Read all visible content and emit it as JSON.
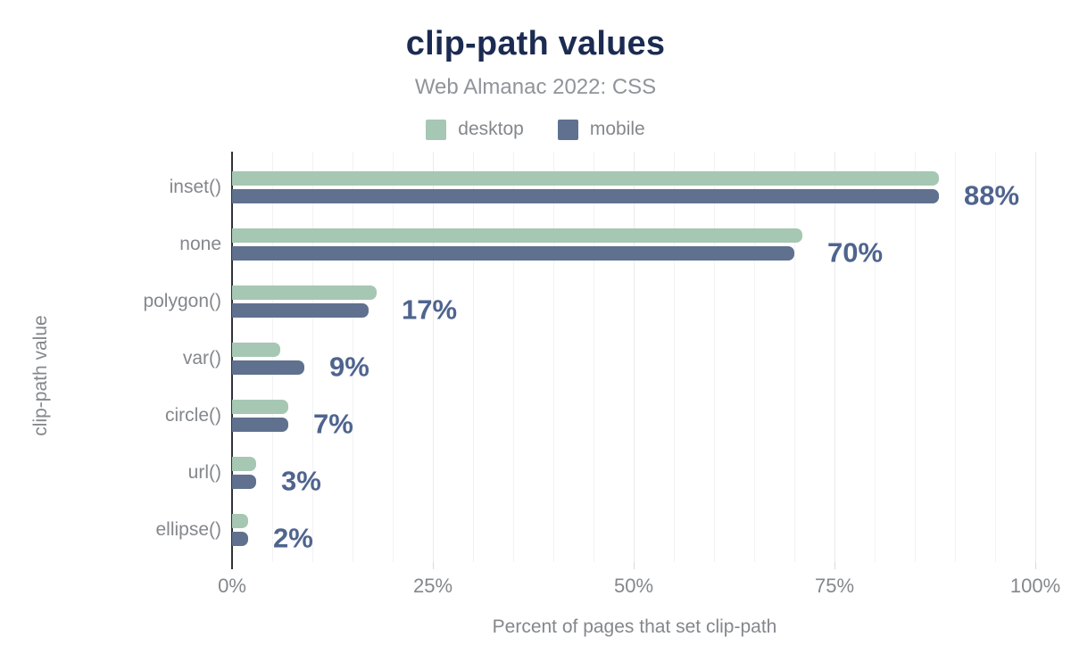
{
  "header": {
    "title": "clip-path values",
    "subtitle": "Web Almanac 2022: CSS"
  },
  "chart_data": {
    "type": "bar",
    "orientation": "horizontal",
    "title": "clip-path values",
    "subtitle": "Web Almanac 2022: CSS",
    "categories": [
      "inset()",
      "none",
      "polygon()",
      "var()",
      "circle()",
      "url()",
      "ellipse()"
    ],
    "series": [
      {
        "name": "desktop",
        "color": "#a6c7b3",
        "values": [
          88,
          71,
          18,
          6,
          7,
          3,
          2
        ]
      },
      {
        "name": "mobile",
        "color": "#5f718e",
        "values": [
          88,
          70,
          17,
          9,
          7,
          3,
          2
        ]
      }
    ],
    "value_labels": [
      "88%",
      "70%",
      "17%",
      "9%",
      "7%",
      "3%",
      "2%"
    ],
    "value_labels_series": "mobile",
    "xlabel": "Percent of pages that set clip-path",
    "ylabel": "clip-path value",
    "xlim": [
      0,
      100
    ],
    "x_ticks": [
      "0%",
      "25%",
      "50%",
      "75%",
      "100%"
    ],
    "x_tick_values": [
      0,
      25,
      50,
      75,
      100
    ],
    "minor_grid_step": 5,
    "grid": true,
    "legend_position": "top"
  },
  "colors": {
    "title": "#1b2b52",
    "subtitle": "#90949a",
    "gray_text": "#84878b",
    "value_label": "#4f648e",
    "axis_line": "#2f3237",
    "grid_minor": "#f2f2f5",
    "grid_major": "#ebebef",
    "desktop": "#a6c7b3",
    "mobile": "#5f718e"
  }
}
